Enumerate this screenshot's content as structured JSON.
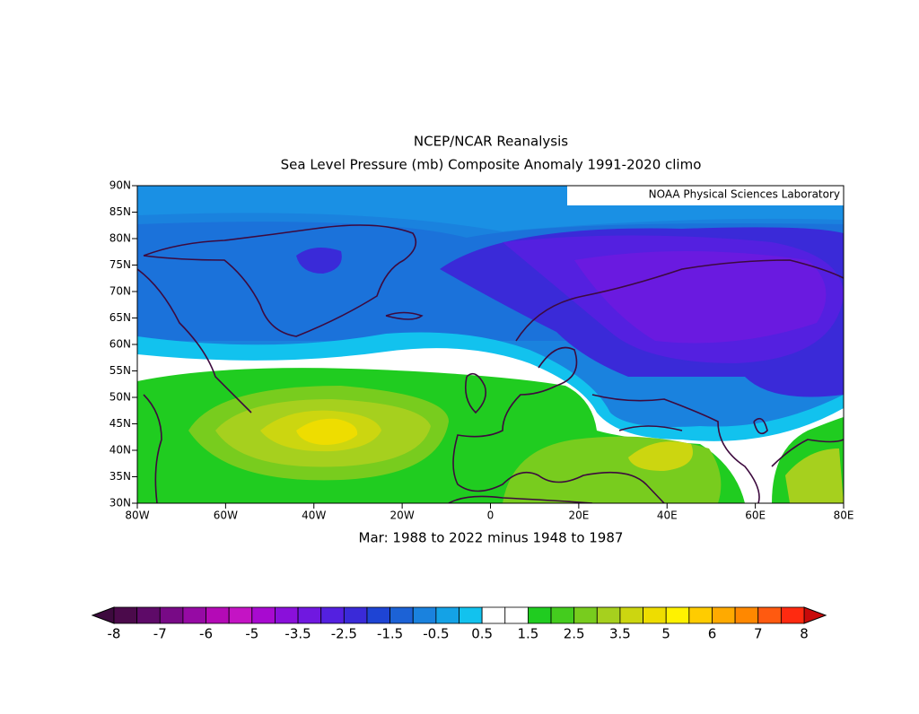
{
  "title": [
    "NCEP/NCAR Reanalysis",
    "Sea Level Pressure (mb) Composite Anomaly 1991-2020 climo"
  ],
  "credit": "NOAA Physical Sciences Laboratory",
  "caption": "Mar: 1988 to 2022 minus 1948 to 1987",
  "lat_ticks": [
    "90N",
    "85N",
    "80N",
    "75N",
    "70N",
    "65N",
    "60N",
    "55N",
    "50N",
    "45N",
    "40N",
    "35N",
    "30N"
  ],
  "lon_ticks": [
    "80W",
    "60W",
    "40W",
    "20W",
    "0",
    "20E",
    "40E",
    "60E",
    "80E"
  ],
  "colorbar": {
    "labels": [
      -8,
      -7,
      -6,
      -5,
      -3.5,
      -2.5,
      -1.5,
      -0.5,
      0.5,
      1.5,
      2.5,
      3.5,
      5,
      6,
      7,
      8
    ],
    "colors": [
      "#4b0a4b",
      "#5e0a68",
      "#780a86",
      "#960aa4",
      "#b40ab6",
      "#c414c4",
      "#a80ad0",
      "#8a10da",
      "#7018e0",
      "#5420e0",
      "#3a2ad8",
      "#1e44d4",
      "#1c62d6",
      "#1a82de",
      "#14a2e6",
      "#12c2ee",
      "#ffffff",
      "#ffffff",
      "#20cc20",
      "#44cc1e",
      "#78cc1e",
      "#a6d01e",
      "#ccd610",
      "#eedd00",
      "#fff200",
      "#ffcc00",
      "#ffaa00",
      "#ff8800",
      "#ff5a10",
      "#ff2a10"
    ],
    "low_color": "#3d0a3e",
    "high_color": "#c80a0a"
  }
}
